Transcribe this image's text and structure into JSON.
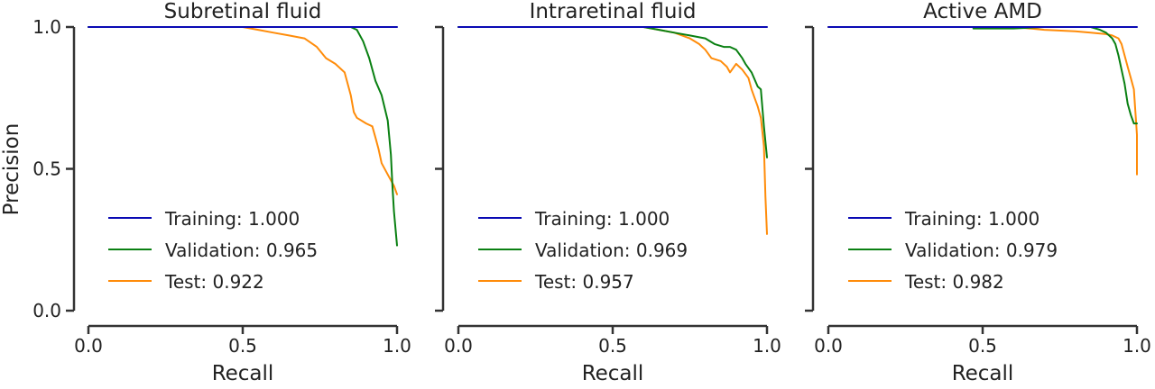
{
  "colors": {
    "training": "#0a0ab4",
    "validation": "#0a8012",
    "test": "#ff8c0a"
  },
  "chart_data": [
    {
      "type": "line",
      "title": "Subretinal fluid",
      "xlabel": "Recall",
      "ylabel": "Precision",
      "xlim": [
        0,
        1
      ],
      "ylim": [
        0,
        1
      ],
      "xticks": [
        "0.0",
        "0.5",
        "1.0"
      ],
      "yticks": [
        "0.0",
        "0.5",
        "1.0"
      ],
      "grid": false,
      "legend_position": "lower-left",
      "series": [
        {
          "name": "Training: 1.000",
          "color_key": "training",
          "x": [
            0,
            1.0
          ],
          "y": [
            1.0,
            1.0
          ]
        },
        {
          "name": "Validation: 0.965",
          "color_key": "validation",
          "x": [
            0,
            0.85,
            0.87,
            0.89,
            0.91,
            0.93,
            0.95,
            0.97,
            0.98,
            0.985,
            0.99,
            0.995,
            1.0
          ],
          "y": [
            1.0,
            1.0,
            0.99,
            0.95,
            0.89,
            0.81,
            0.76,
            0.67,
            0.55,
            0.44,
            0.35,
            0.29,
            0.23
          ]
        },
        {
          "name": "Test: 0.922",
          "color_key": "test",
          "x": [
            0,
            0.5,
            0.55,
            0.6,
            0.65,
            0.7,
            0.74,
            0.77,
            0.8,
            0.83,
            0.85,
            0.86,
            0.87,
            0.9,
            0.92,
            0.93,
            0.94,
            0.95,
            0.97,
            0.99,
            1.0
          ],
          "y": [
            1.0,
            1.0,
            0.99,
            0.98,
            0.97,
            0.96,
            0.93,
            0.89,
            0.87,
            0.84,
            0.76,
            0.7,
            0.68,
            0.66,
            0.65,
            0.61,
            0.57,
            0.52,
            0.48,
            0.44,
            0.41
          ]
        }
      ]
    },
    {
      "type": "line",
      "title": "Intraretinal fluid",
      "xlabel": "Recall",
      "ylabel": "",
      "xlim": [
        0,
        1
      ],
      "ylim": [
        0,
        1
      ],
      "xticks": [
        "0.0",
        "0.5",
        "1.0"
      ],
      "yticks": [],
      "grid": false,
      "legend_position": "lower-left",
      "series": [
        {
          "name": "Training: 1.000",
          "color_key": "training",
          "x": [
            0,
            1.0
          ],
          "y": [
            1.0,
            1.0
          ]
        },
        {
          "name": "Validation: 0.969",
          "color_key": "validation",
          "x": [
            0,
            0.6,
            0.65,
            0.7,
            0.75,
            0.8,
            0.83,
            0.86,
            0.88,
            0.9,
            0.92,
            0.93,
            0.95,
            0.97,
            0.98,
            0.99,
            1.0
          ],
          "y": [
            1.0,
            1.0,
            0.99,
            0.98,
            0.97,
            0.96,
            0.94,
            0.93,
            0.93,
            0.92,
            0.89,
            0.87,
            0.84,
            0.79,
            0.78,
            0.65,
            0.54
          ]
        },
        {
          "name": "Test: 0.957",
          "color_key": "test",
          "x": [
            0,
            0.6,
            0.65,
            0.7,
            0.75,
            0.78,
            0.8,
            0.82,
            0.85,
            0.87,
            0.88,
            0.9,
            0.92,
            0.94,
            0.95,
            0.96,
            0.97,
            0.98,
            0.99,
            0.995,
            1.0
          ],
          "y": [
            1.0,
            1.0,
            0.99,
            0.98,
            0.96,
            0.94,
            0.92,
            0.89,
            0.88,
            0.86,
            0.84,
            0.87,
            0.85,
            0.82,
            0.78,
            0.75,
            0.72,
            0.68,
            0.58,
            0.4,
            0.27
          ]
        }
      ]
    },
    {
      "type": "line",
      "title": "Active AMD",
      "xlabel": "Recall",
      "ylabel": "",
      "xlim": [
        0,
        1
      ],
      "ylim": [
        0,
        1
      ],
      "xticks": [
        "0.0",
        "0.5",
        "1.0"
      ],
      "yticks": [],
      "grid": false,
      "legend_position": "lower-left",
      "series": [
        {
          "name": "Training: 1.000",
          "color_key": "training",
          "x": [
            0,
            1.0
          ],
          "y": [
            1.0,
            1.0
          ]
        },
        {
          "name": "Validation: 0.979",
          "color_key": "validation",
          "x": [
            0.47,
            0.6,
            0.7,
            0.8,
            0.85,
            0.88,
            0.9,
            0.92,
            0.93,
            0.94,
            0.95,
            0.96,
            0.97,
            0.98,
            0.99,
            1.0
          ],
          "y": [
            0.995,
            0.995,
            1.0,
            1.0,
            1.0,
            0.99,
            0.98,
            0.96,
            0.94,
            0.9,
            0.85,
            0.8,
            0.73,
            0.69,
            0.66,
            0.66
          ]
        },
        {
          "name": "Test: 0.982",
          "color_key": "test",
          "x": [
            0,
            0.6,
            0.7,
            0.8,
            0.85,
            0.9,
            0.92,
            0.94,
            0.95,
            0.96,
            0.97,
            0.98,
            0.99,
            0.995,
            1.0,
            1.0
          ],
          "y": [
            1.0,
            1.0,
            0.99,
            0.985,
            0.98,
            0.975,
            0.97,
            0.96,
            0.94,
            0.9,
            0.86,
            0.82,
            0.78,
            0.7,
            0.62,
            0.48
          ]
        }
      ]
    }
  ]
}
